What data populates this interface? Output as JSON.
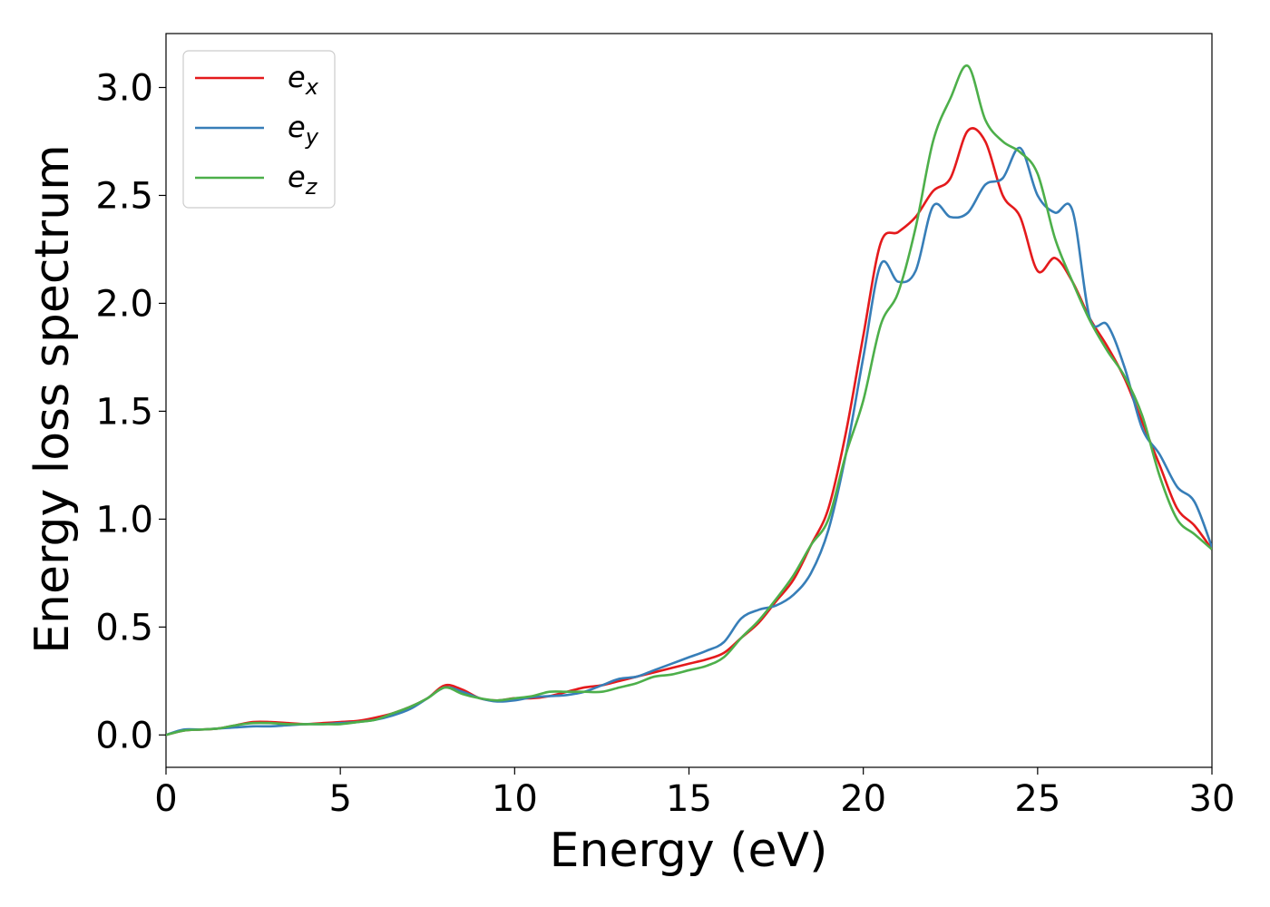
{
  "chart_data": {
    "type": "line",
    "title": "",
    "xlabel": "Energy (eV)",
    "ylabel": "Energy loss spectrum",
    "xlim": [
      0,
      30
    ],
    "ylim": [
      -0.15,
      3.25
    ],
    "xticks": [
      0,
      5,
      10,
      15,
      20,
      25,
      30
    ],
    "xtick_labels": [
      "0",
      "5",
      "10",
      "15",
      "20",
      "25",
      "30"
    ],
    "yticks": [
      0.0,
      0.5,
      1.0,
      1.5,
      2.0,
      2.5,
      3.0
    ],
    "ytick_labels": [
      "0.0",
      "0.5",
      "1.0",
      "1.5",
      "2.0",
      "2.5",
      "3.0"
    ],
    "grid": false,
    "legend": "top-left",
    "x": [
      0,
      0.5,
      1,
      1.5,
      2,
      2.5,
      3,
      3.5,
      4,
      4.5,
      5,
      5.5,
      6,
      6.5,
      7,
      7.5,
      8,
      8.5,
      9,
      9.5,
      10,
      10.5,
      11,
      11.5,
      12,
      12.5,
      13,
      13.5,
      14,
      14.5,
      15,
      15.5,
      16,
      16.5,
      17,
      17.5,
      18,
      18.5,
      19,
      19.5,
      20,
      20.5,
      21,
      21.5,
      22,
      22.5,
      23,
      23.5,
      24,
      24.5,
      25,
      25.5,
      26,
      26.5,
      27,
      27.5,
      28,
      28.5,
      29,
      29.5,
      30
    ],
    "series": [
      {
        "name": "e",
        "sub": "x",
        "color": "#e41a1c",
        "values": [
          0.0,
          0.02,
          0.025,
          0.03,
          0.045,
          0.06,
          0.06,
          0.055,
          0.05,
          0.055,
          0.06,
          0.065,
          0.08,
          0.1,
          0.13,
          0.17,
          0.23,
          0.21,
          0.17,
          0.16,
          0.17,
          0.17,
          0.18,
          0.2,
          0.22,
          0.23,
          0.25,
          0.27,
          0.29,
          0.31,
          0.33,
          0.35,
          0.38,
          0.45,
          0.52,
          0.62,
          0.72,
          0.88,
          1.05,
          1.4,
          1.85,
          2.28,
          2.33,
          2.4,
          2.52,
          2.58,
          2.8,
          2.75,
          2.5,
          2.4,
          2.15,
          2.21,
          2.1,
          1.93,
          1.8,
          1.65,
          1.45,
          1.25,
          1.05,
          0.97,
          0.86
        ]
      },
      {
        "name": "e",
        "sub": "y",
        "color": "#377eb8",
        "values": [
          0.0,
          0.025,
          0.025,
          0.03,
          0.035,
          0.04,
          0.04,
          0.045,
          0.05,
          0.05,
          0.055,
          0.06,
          0.07,
          0.09,
          0.12,
          0.17,
          0.22,
          0.2,
          0.17,
          0.155,
          0.16,
          0.175,
          0.18,
          0.185,
          0.2,
          0.23,
          0.26,
          0.27,
          0.3,
          0.33,
          0.36,
          0.39,
          0.43,
          0.54,
          0.58,
          0.6,
          0.65,
          0.75,
          0.95,
          1.3,
          1.75,
          2.18,
          2.1,
          2.15,
          2.45,
          2.4,
          2.42,
          2.55,
          2.58,
          2.72,
          2.5,
          2.42,
          2.43,
          1.93,
          1.9,
          1.7,
          1.42,
          1.3,
          1.15,
          1.08,
          0.87
        ]
      },
      {
        "name": "e",
        "sub": "z",
        "color": "#4daf4a",
        "values": [
          0.0,
          0.02,
          0.025,
          0.03,
          0.045,
          0.055,
          0.055,
          0.05,
          0.05,
          0.05,
          0.05,
          0.06,
          0.07,
          0.1,
          0.13,
          0.17,
          0.22,
          0.19,
          0.17,
          0.16,
          0.17,
          0.18,
          0.2,
          0.2,
          0.2,
          0.2,
          0.22,
          0.24,
          0.27,
          0.28,
          0.3,
          0.32,
          0.36,
          0.45,
          0.53,
          0.63,
          0.74,
          0.88,
          1.0,
          1.3,
          1.55,
          1.9,
          2.05,
          2.35,
          2.75,
          2.95,
          3.1,
          2.85,
          2.75,
          2.7,
          2.6,
          2.3,
          2.1,
          1.92,
          1.78,
          1.66,
          1.48,
          1.2,
          1.0,
          0.93,
          0.86
        ]
      }
    ]
  }
}
